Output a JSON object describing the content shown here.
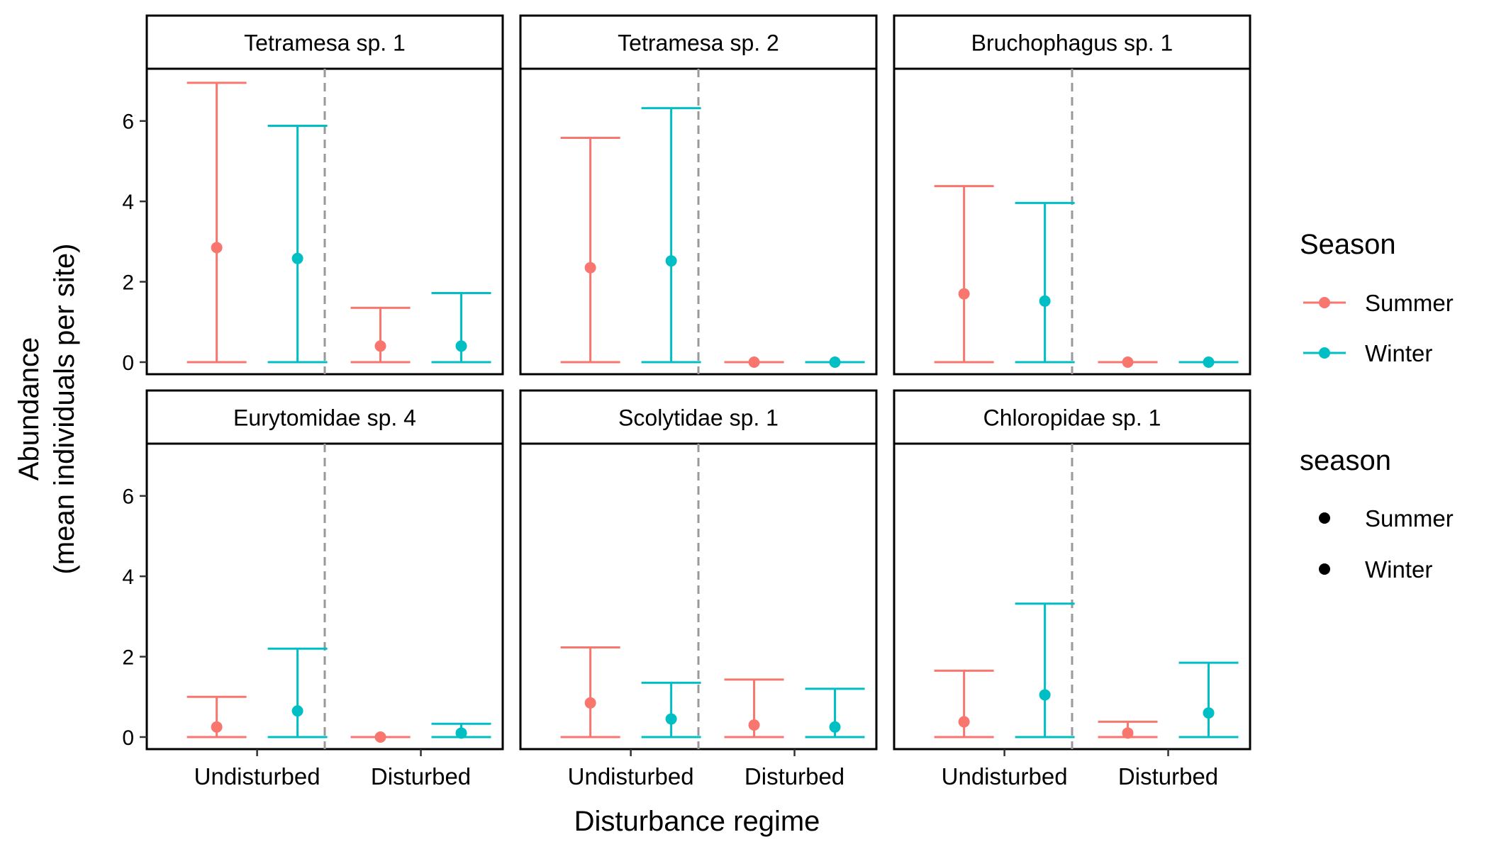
{
  "chart_data": {
    "type": "errorbar",
    "xlabel": "Disturbance regime",
    "ylabel_line1": "Abundance",
    "ylabel_line2": "(mean individuals per site)",
    "categories": [
      "Undisturbed",
      "Disturbed"
    ],
    "ylim": [
      -0.3,
      7.3
    ],
    "yticks": [
      0,
      2,
      4,
      6
    ],
    "grid": false,
    "colors": {
      "Summer": "#F8766D",
      "Winter": "#00BFC4"
    },
    "legend": {
      "position": "right",
      "color_title": "Season",
      "shape_title": "season",
      "items": [
        "Summer",
        "Winter"
      ]
    },
    "panels": [
      {
        "title": "Tetramesa sp. 1",
        "points": [
          {
            "category": "Undisturbed",
            "season": "Summer",
            "mean": 2.85,
            "lower": 0,
            "upper": 6.95
          },
          {
            "category": "Undisturbed",
            "season": "Winter",
            "mean": 2.58,
            "lower": 0,
            "upper": 5.88
          },
          {
            "category": "Disturbed",
            "season": "Summer",
            "mean": 0.4,
            "lower": 0,
            "upper": 1.35
          },
          {
            "category": "Disturbed",
            "season": "Winter",
            "mean": 0.4,
            "lower": 0,
            "upper": 1.72
          }
        ]
      },
      {
        "title": "Tetramesa sp. 2",
        "points": [
          {
            "category": "Undisturbed",
            "season": "Summer",
            "mean": 2.35,
            "lower": 0,
            "upper": 5.58
          },
          {
            "category": "Undisturbed",
            "season": "Winter",
            "mean": 2.52,
            "lower": 0,
            "upper": 6.32
          },
          {
            "category": "Disturbed",
            "season": "Summer",
            "mean": 0,
            "lower": 0,
            "upper": 0
          },
          {
            "category": "Disturbed",
            "season": "Winter",
            "mean": 0,
            "lower": 0,
            "upper": 0
          }
        ]
      },
      {
        "title": "Bruchophagus sp. 1",
        "points": [
          {
            "category": "Undisturbed",
            "season": "Summer",
            "mean": 1.7,
            "lower": 0,
            "upper": 4.38
          },
          {
            "category": "Undisturbed",
            "season": "Winter",
            "mean": 1.52,
            "lower": 0,
            "upper": 3.96
          },
          {
            "category": "Disturbed",
            "season": "Summer",
            "mean": 0,
            "lower": 0,
            "upper": 0
          },
          {
            "category": "Disturbed",
            "season": "Winter",
            "mean": 0,
            "lower": 0,
            "upper": 0
          }
        ]
      },
      {
        "title": "Eurytomidae sp. 4",
        "points": [
          {
            "category": "Undisturbed",
            "season": "Summer",
            "mean": 0.25,
            "lower": 0,
            "upper": 1.0
          },
          {
            "category": "Undisturbed",
            "season": "Winter",
            "mean": 0.65,
            "lower": 0,
            "upper": 2.2
          },
          {
            "category": "Disturbed",
            "season": "Summer",
            "mean": 0,
            "lower": 0,
            "upper": 0
          },
          {
            "category": "Disturbed",
            "season": "Winter",
            "mean": 0.1,
            "lower": 0,
            "upper": 0.33
          }
        ]
      },
      {
        "title": "Scolytidae sp. 1",
        "points": [
          {
            "category": "Undisturbed",
            "season": "Summer",
            "mean": 0.85,
            "lower": 0,
            "upper": 2.23
          },
          {
            "category": "Undisturbed",
            "season": "Winter",
            "mean": 0.45,
            "lower": 0,
            "upper": 1.35
          },
          {
            "category": "Disturbed",
            "season": "Summer",
            "mean": 0.3,
            "lower": 0,
            "upper": 1.43
          },
          {
            "category": "Disturbed",
            "season": "Winter",
            "mean": 0.25,
            "lower": 0,
            "upper": 1.2
          }
        ]
      },
      {
        "title": "Chloropidae sp. 1",
        "points": [
          {
            "category": "Undisturbed",
            "season": "Summer",
            "mean": 0.38,
            "lower": 0,
            "upper": 1.65
          },
          {
            "category": "Undisturbed",
            "season": "Winter",
            "mean": 1.05,
            "lower": 0,
            "upper": 3.32
          },
          {
            "category": "Disturbed",
            "season": "Summer",
            "mean": 0.1,
            "lower": 0,
            "upper": 0.38
          },
          {
            "category": "Disturbed",
            "season": "Winter",
            "mean": 0.6,
            "lower": 0,
            "upper": 1.85
          }
        ]
      }
    ]
  }
}
